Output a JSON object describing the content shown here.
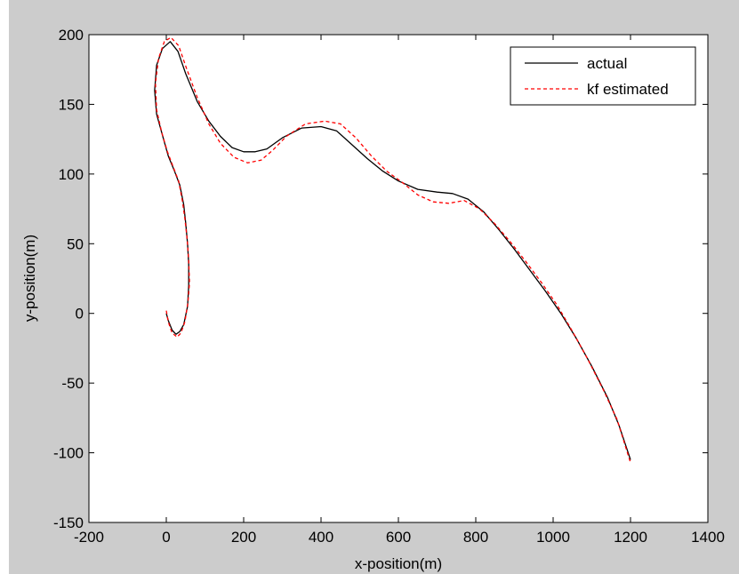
{
  "chart_data": {
    "type": "line",
    "title": "",
    "xlabel": "x-position(m)",
    "ylabel": "y-position(m)",
    "xlim": [
      -200,
      1400
    ],
    "ylim": [
      -150,
      200
    ],
    "xticks": [
      -200,
      0,
      200,
      400,
      600,
      800,
      1000,
      1200,
      1400
    ],
    "yticks": [
      -150,
      -100,
      -50,
      0,
      50,
      100,
      150,
      200
    ],
    "xtick_labels": [
      "-200",
      "0",
      "200",
      "400",
      "600",
      "800",
      "1000",
      "1200",
      "1400"
    ],
    "ytick_labels": [
      "-150",
      "-100",
      "-50",
      "0",
      "50",
      "100",
      "150",
      "200"
    ],
    "grid": false,
    "legend_position": "top-right",
    "series": [
      {
        "name": "actual",
        "color": "#000000",
        "style": "solid",
        "x": [
          0,
          5,
          15,
          25,
          35,
          45,
          55,
          58,
          58,
          55,
          50,
          45,
          35,
          20,
          5,
          -10,
          -25,
          -30,
          -25,
          -10,
          10,
          30,
          50,
          80,
          110,
          140,
          170,
          200,
          230,
          260,
          300,
          350,
          400,
          440,
          480,
          520,
          560,
          600,
          650,
          700,
          740,
          780,
          820,
          860,
          900,
          940,
          980,
          1020,
          1060,
          1100,
          1140,
          1170,
          1200
        ],
        "y": [
          0,
          -5,
          -12,
          -15,
          -13,
          -8,
          5,
          20,
          35,
          50,
          65,
          78,
          92,
          103,
          113,
          128,
          143,
          160,
          178,
          190,
          195,
          188,
          172,
          152,
          138,
          127,
          119,
          116,
          116,
          118,
          126,
          133,
          134,
          131,
          121,
          111,
          102,
          95,
          89,
          87,
          86,
          82,
          73,
          60,
          46,
          31,
          16,
          0,
          -18,
          -38,
          -60,
          -80,
          -105
        ]
      },
      {
        "name": "kf estimated",
        "color": "#ff0000",
        "style": "dashed",
        "x": [
          0,
          5,
          15,
          28,
          38,
          48,
          56,
          60,
          58,
          54,
          48,
          42,
          32,
          18,
          3,
          -12,
          -25,
          -28,
          -20,
          -5,
          12,
          32,
          52,
          80,
          110,
          140,
          175,
          210,
          245,
          275,
          310,
          360,
          410,
          450,
          490,
          530,
          570,
          610,
          650,
          690,
          730,
          770,
          810,
          850,
          890,
          930,
          970,
          1010,
          1050,
          1090,
          1130,
          1165,
          1200
        ],
        "y": [
          2,
          -6,
          -14,
          -17,
          -14,
          -6,
          8,
          22,
          38,
          53,
          68,
          80,
          95,
          105,
          116,
          130,
          146,
          165,
          183,
          195,
          198,
          192,
          176,
          155,
          136,
          122,
          112,
          108,
          110,
          117,
          127,
          136,
          138,
          136,
          126,
          113,
          102,
          94,
          85,
          80,
          79,
          81,
          75,
          64,
          51,
          37,
          22,
          6,
          -13,
          -33,
          -55,
          -76,
          -107
        ]
      }
    ]
  }
}
